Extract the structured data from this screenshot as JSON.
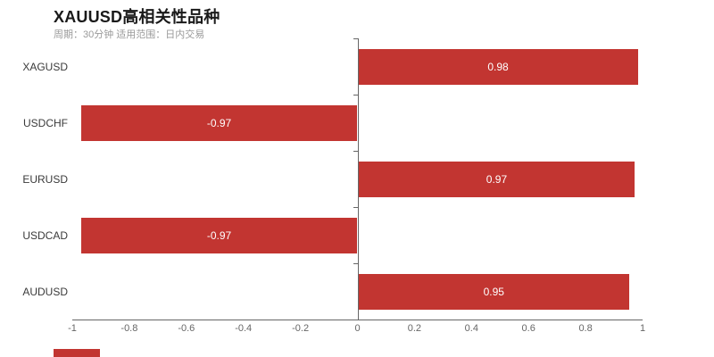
{
  "header": {
    "title": "XAUUSD高相关性品种",
    "subtitle": "周期：30分钟 适用范围：日内交易"
  },
  "colors": {
    "bar": "#c23531",
    "brand_mark": "#c23531",
    "axis_line": "#666666",
    "tick_label": "#666666",
    "category_label": "#3a3a3a",
    "value_label": "#ffffff",
    "title": "#1a1a1a",
    "subtitle": "#999999"
  },
  "chart_data": {
    "type": "bar",
    "orientation": "horizontal",
    "title": "XAUUSD高相关性品种",
    "subtitle": "周期：30分钟 适用范围：日内交易",
    "categories": [
      "XAGUSD",
      "USDCHF",
      "EURUSD",
      "USDCAD",
      "AUDUSD"
    ],
    "values": [
      0.98,
      -0.97,
      0.97,
      -0.97,
      0.95
    ],
    "value_labels": [
      "0.98",
      "-0.97",
      "0.97",
      "-0.97",
      "0.95"
    ],
    "xlabel": "",
    "ylabel": "",
    "xlim": [
      -1,
      1
    ],
    "x_ticks": [
      -1,
      -0.8,
      -0.6,
      -0.4,
      -0.2,
      0,
      0.2,
      0.4,
      0.6,
      0.8,
      1
    ],
    "x_tick_labels": [
      "-1",
      "-0.8",
      "-0.6",
      "-0.4",
      "-0.2",
      "0",
      "0.2",
      "0.4",
      "0.6",
      "0.8",
      "1"
    ],
    "grid": "zero-line-only",
    "legend": "none",
    "value_label_position": "inside-center"
  }
}
